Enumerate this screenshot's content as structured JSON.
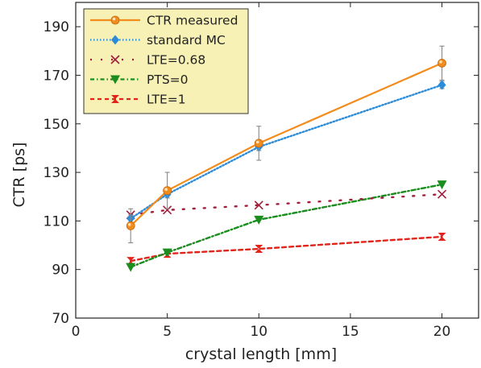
{
  "chart_data": {
    "type": "line",
    "xlabel": "crystal length [mm]",
    "ylabel": "CTR [ps]",
    "xlim": [
      0,
      22
    ],
    "ylim": [
      70,
      200
    ],
    "xticks": [
      0,
      5,
      10,
      15,
      20
    ],
    "yticks": [
      70,
      90,
      110,
      130,
      150,
      170,
      190
    ],
    "grid": false,
    "legend_position": "top-left",
    "series": [
      {
        "name": "CTR measured",
        "color": "#f28c1c",
        "line": "solid",
        "marker": "ball",
        "x": [
          3,
          5,
          10,
          20
        ],
        "values": [
          108,
          122.5,
          142,
          175
        ],
        "errors": [
          7,
          7.5,
          7,
          7
        ]
      },
      {
        "name": "standard MC",
        "color": "#2c8cd8",
        "line": "dotted",
        "marker": "diamond",
        "x": [
          3,
          5,
          10,
          20
        ],
        "values": [
          111,
          121,
          140.5,
          166
        ],
        "errors": [
          1.5,
          1.5,
          1.5,
          1.5
        ]
      },
      {
        "name": "LTE=0.68",
        "color": "#a11f3c",
        "line": "sparse-dotted",
        "marker": "x",
        "x": [
          3,
          5,
          10,
          20
        ],
        "values": [
          112.5,
          114.5,
          116.5,
          121
        ],
        "errors": []
      },
      {
        "name": "PTS=0",
        "color": "#1b8c1e",
        "line": "dash-dot",
        "marker": "triangle-down",
        "x": [
          3,
          5,
          10,
          20
        ],
        "values": [
          91,
          97,
          110.5,
          125
        ],
        "errors": []
      },
      {
        "name": "LTE=1",
        "color": "#e2231a",
        "line": "dashed",
        "marker": "bowtie",
        "x": [
          3,
          5,
          10,
          20
        ],
        "values": [
          93.5,
          96.5,
          98.5,
          103.5
        ],
        "errors": []
      }
    ]
  }
}
